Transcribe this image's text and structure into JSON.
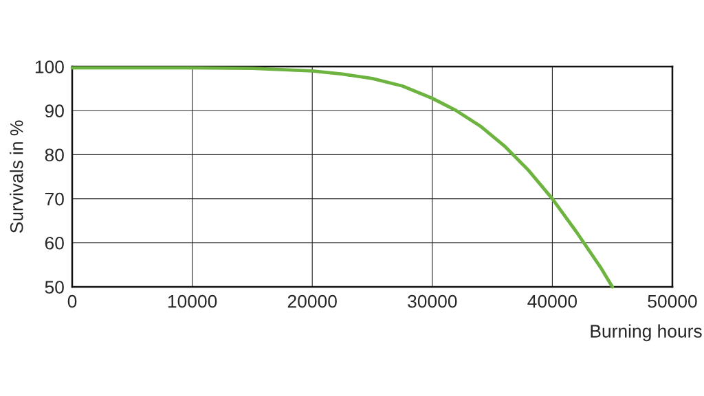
{
  "chart_data": {
    "type": "line",
    "xlabel": "Burning hours",
    "ylabel": "Survivals in %",
    "x": [
      0,
      5000,
      10000,
      15000,
      20000,
      22500,
      25000,
      27500,
      30000,
      32000,
      34000,
      36000,
      38000,
      40000,
      42000,
      44000,
      45000
    ],
    "series": [
      {
        "color": "#6db33f",
        "values": [
          99.7,
          99.7,
          99.7,
          99.6,
          99.0,
          98.3,
          97.3,
          95.6,
          92.8,
          90.0,
          86.5,
          82.0,
          76.5,
          70.0,
          62.5,
          54.5,
          50.0
        ]
      }
    ],
    "xlim": [
      0,
      50000
    ],
    "ylim": [
      50,
      100
    ],
    "xticks": [
      0,
      10000,
      20000,
      30000,
      40000,
      50000
    ],
    "yticks": [
      50,
      60,
      70,
      80,
      90,
      100
    ],
    "grid": true,
    "marker": "none",
    "line_style": "solid"
  }
}
